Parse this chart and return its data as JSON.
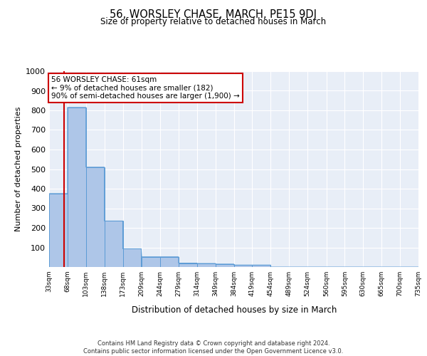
{
  "title": "56, WORSLEY CHASE, MARCH, PE15 9DJ",
  "subtitle": "Size of property relative to detached houses in March",
  "xlabel": "Distribution of detached houses by size in March",
  "ylabel": "Number of detached properties",
  "bin_labels": [
    "33sqm",
    "68sqm",
    "103sqm",
    "138sqm",
    "173sqm",
    "209sqm",
    "244sqm",
    "279sqm",
    "314sqm",
    "349sqm",
    "384sqm",
    "419sqm",
    "454sqm",
    "489sqm",
    "524sqm",
    "560sqm",
    "595sqm",
    "630sqm",
    "665sqm",
    "700sqm",
    "735sqm"
  ],
  "bar_heights": [
    375,
    815,
    510,
    235,
    93,
    52,
    52,
    20,
    18,
    15,
    10,
    10,
    0,
    0,
    0,
    0,
    0,
    0,
    0,
    0,
    0
  ],
  "bar_color": "#aec6e8",
  "bar_edge_color": "#5b9bd5",
  "background_color": "#e8eef7",
  "grid_color": "#ffffff",
  "ylim": [
    0,
    1000
  ],
  "yticks": [
    0,
    100,
    200,
    300,
    400,
    500,
    600,
    700,
    800,
    900,
    1000
  ],
  "property_line_color": "#cc0000",
  "annotation_text": "56 WORSLEY CHASE: 61sqm\n← 9% of detached houses are smaller (182)\n90% of semi-detached houses are larger (1,900) →",
  "annotation_box_color": "#ffffff",
  "annotation_box_edge": "#cc0000",
  "footer_text": "Contains HM Land Registry data © Crown copyright and database right 2024.\nContains public sector information licensed under the Open Government Licence v3.0.",
  "bin_edges": [
    33,
    68,
    103,
    138,
    173,
    209,
    244,
    279,
    314,
    349,
    384,
    419,
    454,
    489,
    524,
    560,
    595,
    630,
    665,
    700,
    735
  ],
  "fig_width": 6.0,
  "fig_height": 5.0
}
